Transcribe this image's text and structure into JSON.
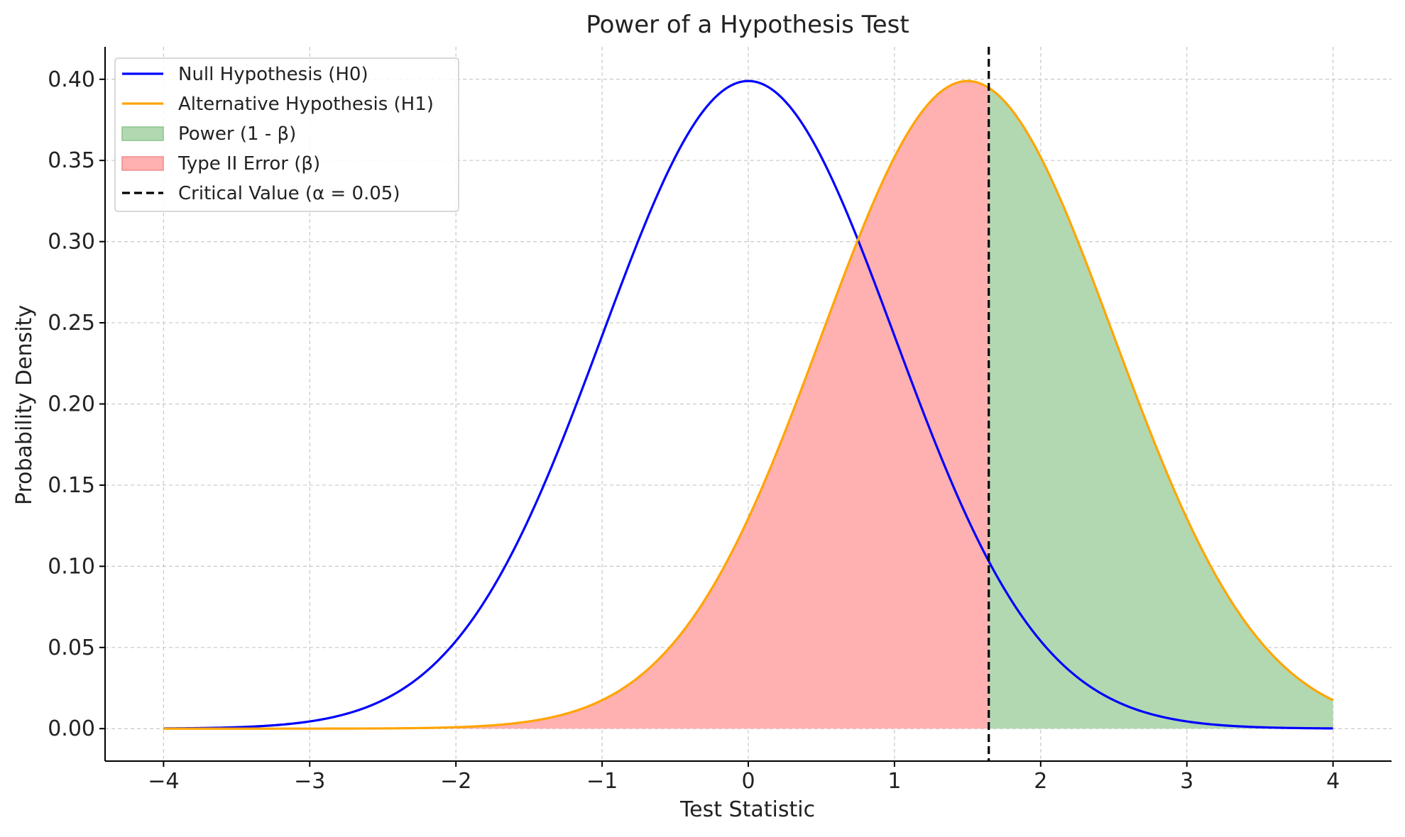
{
  "chart_data": {
    "type": "line",
    "title": "Power of a Hypothesis Test",
    "xlabel": "Test Statistic",
    "ylabel": "Probability Density",
    "xlim": [
      -4.4,
      4.4
    ],
    "ylim": [
      -0.02,
      0.42
    ],
    "grid": true,
    "legend_position": "top-left",
    "x_ticks": [
      -4,
      -3,
      -2,
      -1,
      0,
      1,
      2,
      3,
      4
    ],
    "x_tick_labels": [
      "−4",
      "−3",
      "−2",
      "−1",
      "0",
      "1",
      "2",
      "3",
      "4"
    ],
    "y_ticks": [
      0,
      0.05,
      0.1,
      0.15,
      0.2,
      0.25,
      0.3,
      0.35,
      0.4
    ],
    "y_tick_labels": [
      "0.00",
      "0.05",
      "0.10",
      "0.15",
      "0.20",
      "0.25",
      "0.30",
      "0.35",
      "0.40"
    ],
    "x_range": [
      -4,
      4
    ],
    "critical_value": 1.645,
    "series": [
      {
        "name": "Null Hypothesis (H0)",
        "kind": "line",
        "distribution": "normal",
        "mean": 0,
        "sd": 1,
        "color": "#0000ff"
      },
      {
        "name": "Alternative Hypothesis (H1)",
        "kind": "line",
        "distribution": "normal",
        "mean": 1.5,
        "sd": 1,
        "color": "#ffa500"
      },
      {
        "name": "Power (1 - β)",
        "kind": "area",
        "under": "Alternative Hypothesis (H1)",
        "from": 1.645,
        "to": 4,
        "color": "#b2d8b2"
      },
      {
        "name": "Type II Error (β)",
        "kind": "area",
        "under": "Alternative Hypothesis (H1)",
        "from": -4,
        "to": 1.645,
        "color": "#ffb0b0"
      },
      {
        "name": "Critical Value (α = 0.05)",
        "kind": "vline",
        "x": 1.645,
        "color": "#000000",
        "dashed": true
      }
    ]
  }
}
